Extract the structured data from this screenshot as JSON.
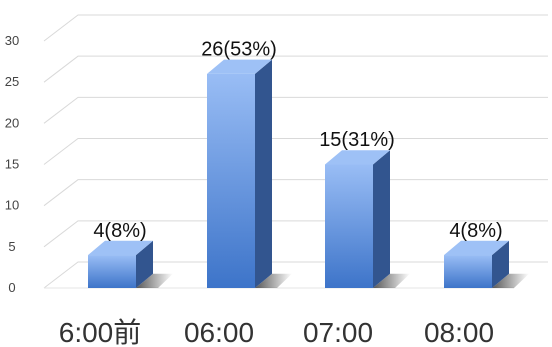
{
  "chart_data": {
    "type": "bar",
    "categories": [
      "6:00前",
      "06:00",
      "07:00",
      "08:00"
    ],
    "values": [
      4,
      26,
      15,
      4
    ],
    "data_labels": [
      "4(8%)",
      "26(53%)",
      "15(31%)",
      "4(8%)"
    ],
    "ylim": [
      0,
      30
    ],
    "yticks": [
      0,
      5,
      10,
      15,
      20,
      25,
      30
    ],
    "grid": true,
    "style": "3d-column",
    "colors": {
      "bar_top": "#9ec1f6",
      "bar_front_light": "#99bdf5",
      "bar_front_dark": "#3d74c9",
      "bar_side": "#32558f",
      "shadow": "#3a3a3a",
      "grid": "#d9d9d9"
    }
  }
}
